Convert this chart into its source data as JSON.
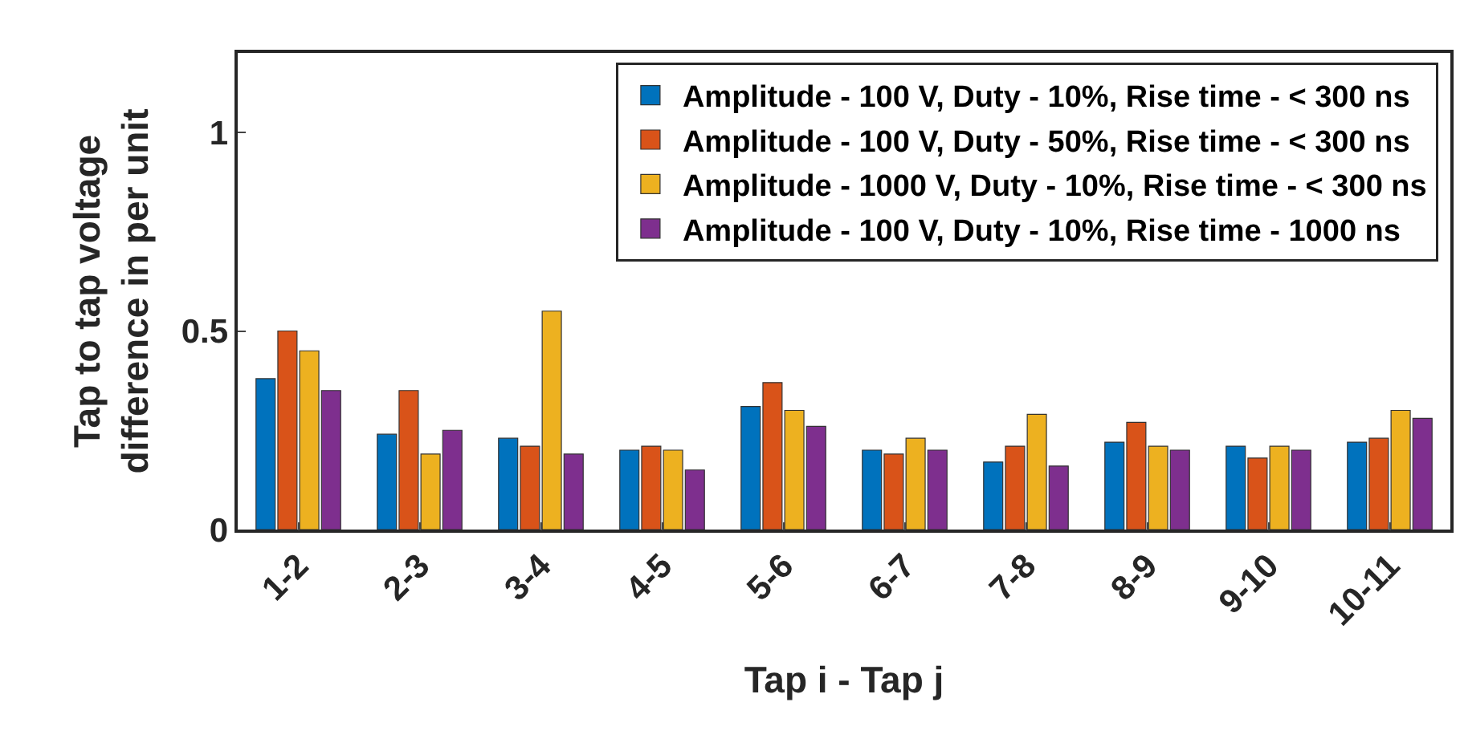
{
  "chart_data": {
    "type": "bar",
    "xlabel": "Tap i - Tap j",
    "ylabel": "Tap to tap voltage difference in per unit",
    "categories": [
      "1-2",
      "2-3",
      "3-4",
      "4-5",
      "5-6",
      "6-7",
      "7-8",
      "8-9",
      "9-10",
      "10-11"
    ],
    "series": [
      {
        "name": "Amplitude - 100 V, Duty - 10%, Rise time - < 300 ns",
        "color": "#0072bd",
        "values": [
          0.38,
          0.24,
          0.23,
          0.2,
          0.31,
          0.2,
          0.17,
          0.22,
          0.21,
          0.22
        ]
      },
      {
        "name": "Amplitude - 100 V, Duty - 50%, Rise time - < 300 ns",
        "color": "#d95319",
        "values": [
          0.5,
          0.35,
          0.21,
          0.21,
          0.37,
          0.19,
          0.21,
          0.27,
          0.18,
          0.23
        ]
      },
      {
        "name": "Amplitude - 1000 V, Duty - 10%, Rise time - < 300 ns",
        "color": "#edb120",
        "values": [
          0.45,
          0.19,
          0.55,
          0.2,
          0.3,
          0.23,
          0.29,
          0.21,
          0.21,
          0.3
        ]
      },
      {
        "name": "Amplitude - 100 V, Duty - 10%, Rise time - 1000 ns",
        "color": "#7e2f8e",
        "values": [
          0.35,
          0.25,
          0.19,
          0.15,
          0.26,
          0.2,
          0.16,
          0.2,
          0.2,
          0.28
        ]
      }
    ],
    "ylim": [
      0,
      1.2
    ],
    "yticks": [
      0,
      0.5,
      1
    ],
    "grid": false,
    "legend": "top right"
  }
}
